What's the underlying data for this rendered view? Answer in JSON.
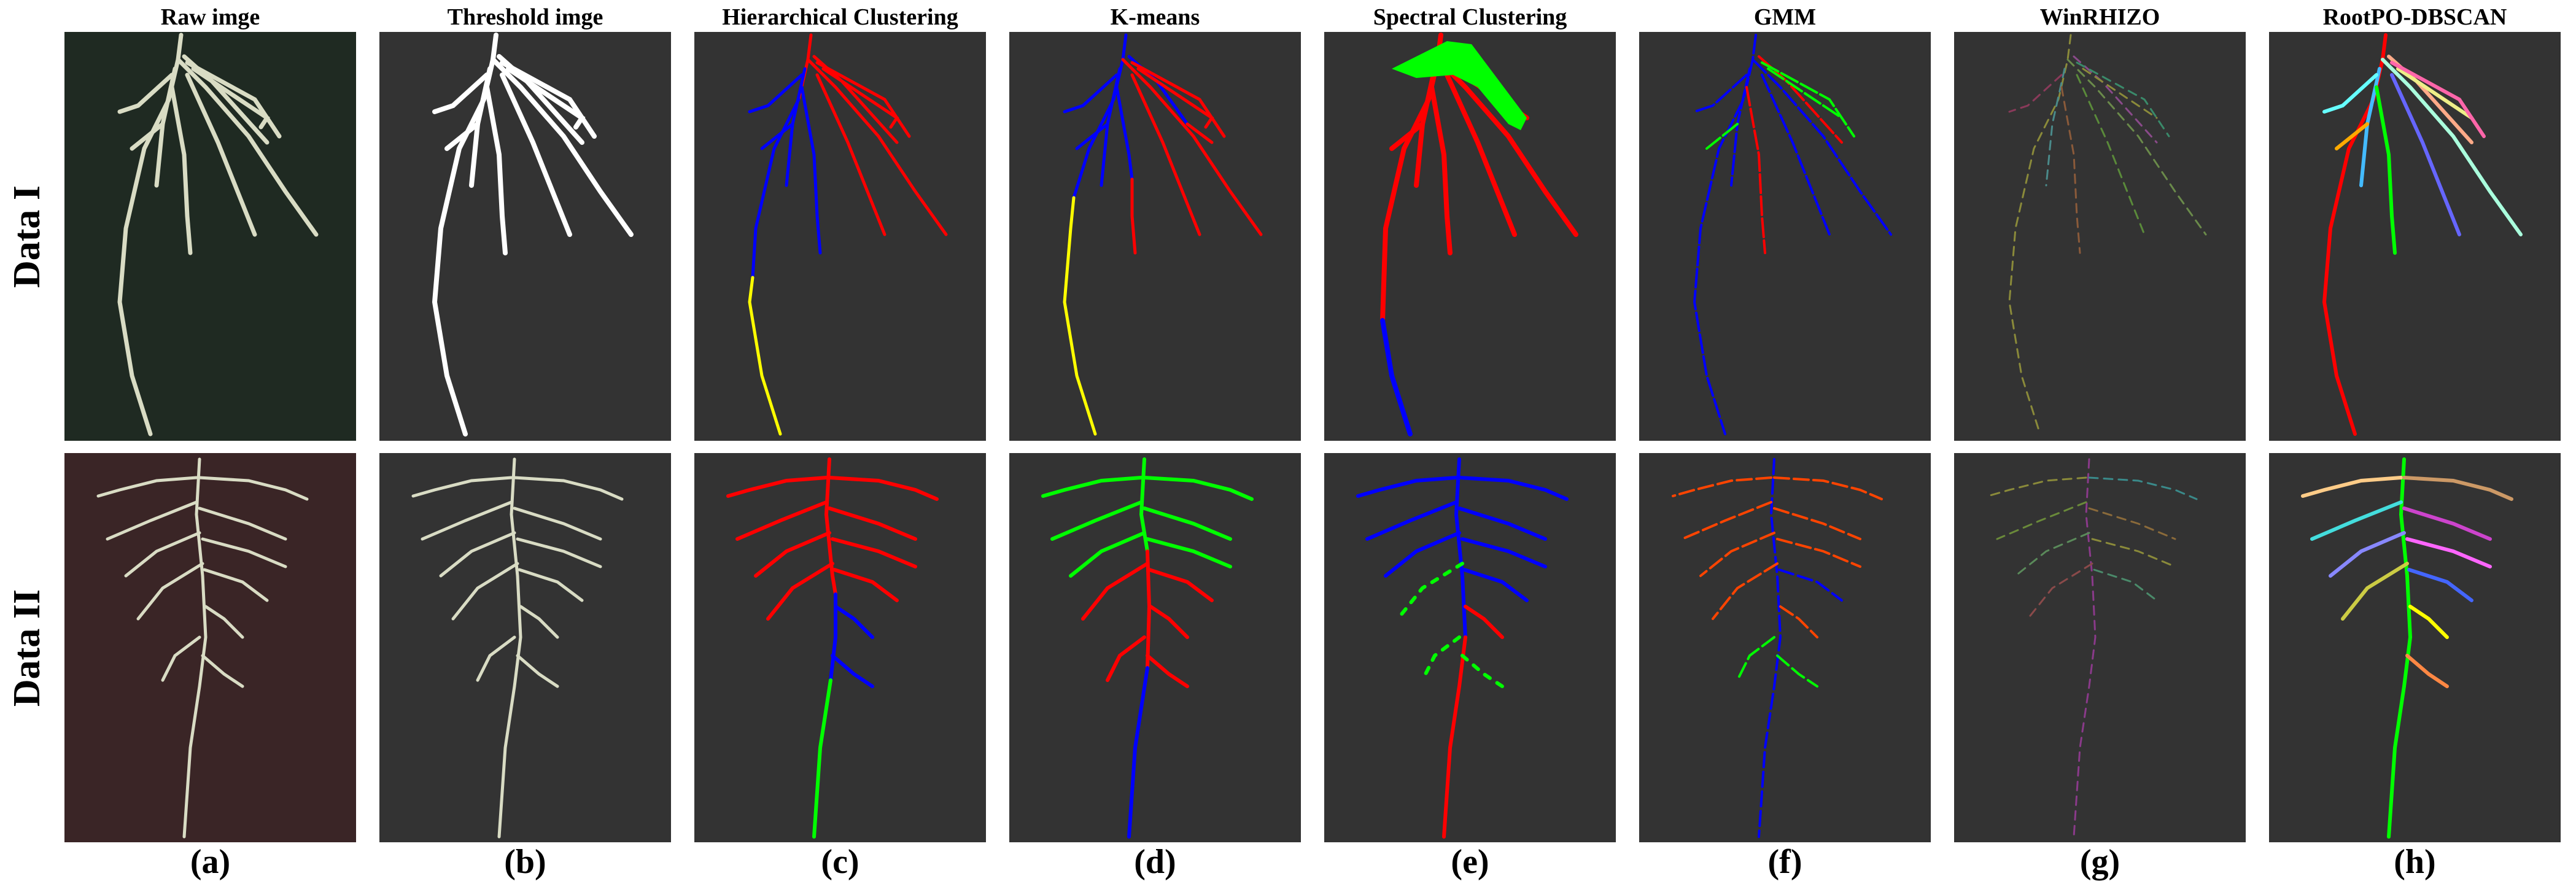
{
  "columns": [
    {
      "title": "Raw imge",
      "label": "(a)"
    },
    {
      "title": "Threshold imge",
      "label": "(b)"
    },
    {
      "title": "Hierarchical Clustering",
      "label": "(c)"
    },
    {
      "title": "K-means",
      "label": "(d)"
    },
    {
      "title": "Spectral Clustering",
      "label": "(e)"
    },
    {
      "title": "GMM",
      "label": "(f)"
    },
    {
      "title": "WinRHIZO",
      "label": "(g)"
    },
    {
      "title": "RootPO-DBSCAN",
      "label": "(h)"
    }
  ],
  "rows": [
    {
      "label": "Data I"
    },
    {
      "label": "Data II"
    }
  ],
  "colors": {
    "panel_background": "#333333",
    "raw_background_1": "#1f2a22",
    "raw_background_2": "#3a2526",
    "root_raw": "#d9dcc4",
    "threshold_root": "#ffffff",
    "cluster_red": "#ff0000",
    "cluster_blue": "#0000ff",
    "cluster_green": "#00ff00",
    "cluster_yellow": "#ffff00"
  }
}
